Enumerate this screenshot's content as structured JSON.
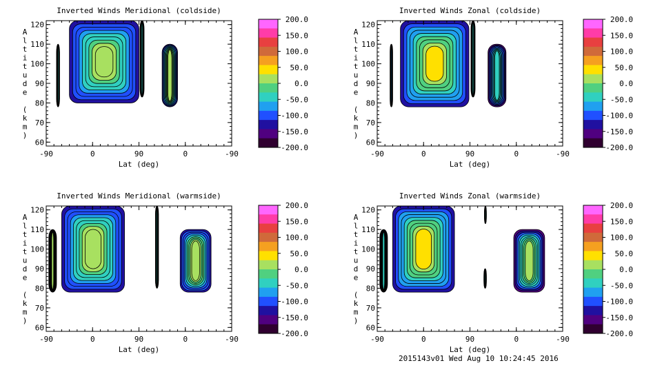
{
  "chart_data": [
    {
      "type": "heatmap",
      "title": "Inverted Winds Meridional (coldside)",
      "xlabel": "Lat (deg)",
      "ylabel": "Altitude (km)",
      "x_ticks": [
        "-90",
        "0",
        "90",
        "0",
        "-90"
      ],
      "y_ticks": [
        60,
        70,
        80,
        90,
        100,
        110,
        120
      ],
      "ylim": [
        58,
        122
      ],
      "colorbar": {
        "ticks": [
          "200.0",
          "150.0",
          "100.0",
          "50.0",
          "0.0",
          "-50.0",
          "-100.0",
          "-150.0",
          "-200.0"
        ],
        "range": [
          -200,
          200
        ]
      },
      "blobs": [
        {
          "x": [
            -70,
            -64
          ],
          "y": [
            78,
            110
          ],
          "v": -40
        },
        {
          "x": [
            -45,
            90
          ],
          "y": [
            80,
            122
          ],
          "v": 15
        },
        {
          "x": [
            92,
            100
          ],
          "y": [
            83,
            122
          ],
          "v": -30
        },
        {
          "x": [
            45,
            15
          ],
          "y": [
            78,
            110
          ],
          "v": 25
        }
      ]
    },
    {
      "type": "heatmap",
      "title": "Inverted Winds Zonal (coldside)",
      "xlabel": "Lat (deg)",
      "ylabel": "Altitude (km)",
      "x_ticks": [
        "-90",
        "0",
        "90",
        "0",
        "-90"
      ],
      "y_ticks": [
        60,
        70,
        80,
        90,
        100,
        110,
        120
      ],
      "ylim": [
        58,
        122
      ],
      "colorbar": {
        "ticks": [
          "200.0",
          "150.0",
          "100.0",
          "50.0",
          "0.0",
          "-50.0",
          "-100.0",
          "-150.0",
          "-200.0"
        ],
        "range": [
          -200,
          200
        ]
      },
      "blobs": [
        {
          "x": [
            -65,
            -60
          ],
          "y": [
            78,
            110
          ],
          "v": -60
        },
        {
          "x": [
            -45,
            88
          ],
          "y": [
            78,
            122
          ],
          "v": 30
        },
        {
          "x": [
            92,
            100
          ],
          "y": [
            83,
            122
          ],
          "v": -40
        },
        {
          "x": [
            55,
            20
          ],
          "y": [
            78,
            110
          ],
          "v": -30
        }
      ]
    },
    {
      "type": "heatmap",
      "title": "Inverted Winds Meridional (warmside)",
      "xlabel": "Lat (deg)",
      "ylabel": "Altitude (km)",
      "x_ticks": [
        "-90",
        "0",
        "90",
        "0",
        "-90"
      ],
      "y_ticks": [
        60,
        70,
        80,
        90,
        100,
        110,
        120
      ],
      "ylim": [
        58,
        122
      ],
      "colorbar": {
        "ticks": [
          "200.0",
          "150.0",
          "100.0",
          "50.0",
          "0.0",
          "-50.0",
          "-100.0",
          "-150.0",
          "-200.0"
        ],
        "range": [
          -200,
          200
        ]
      },
      "blobs": [
        {
          "x": [
            -85,
            -70
          ],
          "y": [
            78,
            110
          ],
          "v": 10
        },
        {
          "x": [
            -60,
            62
          ],
          "y": [
            78,
            122
          ],
          "v": 15
        },
        {
          "x": [
            122,
            128
          ],
          "y": [
            80,
            122
          ],
          "v": -50
        },
        {
          "x": [
            10,
            -50
          ],
          "y": [
            78,
            110
          ],
          "v": 20
        }
      ]
    },
    {
      "type": "heatmap",
      "title": "Inverted Winds Zonal (warmside)",
      "xlabel": "Lat (deg)",
      "ylabel": "Altitude (km)",
      "x_ticks": [
        "-90",
        "0",
        "90",
        "0",
        "-90"
      ],
      "y_ticks": [
        60,
        70,
        80,
        90,
        100,
        110,
        120
      ],
      "ylim": [
        58,
        122
      ],
      "colorbar": {
        "ticks": [
          "200.0",
          "150.0",
          "100.0",
          "50.0",
          "0.0",
          "-50.0",
          "-100.0",
          "-150.0",
          "-200.0"
        ],
        "range": [
          -200,
          200
        ]
      },
      "blobs": [
        {
          "x": [
            -85,
            -70
          ],
          "y": [
            78,
            110
          ],
          "v": -40
        },
        {
          "x": [
            -60,
            60
          ],
          "y": [
            78,
            122
          ],
          "v": 30
        },
        {
          "x": [
            117,
            122
          ],
          "y": [
            80,
            90
          ],
          "v": -40
        },
        {
          "x": [
            118,
            122
          ],
          "y": [
            113,
            122
          ],
          "v": -40
        },
        {
          "x": [
            5,
            -55
          ],
          "y": [
            78,
            110
          ],
          "v": 10
        }
      ]
    }
  ],
  "colorbar_palette": [
    "#ff66ff",
    "#ff3ca8",
    "#e84040",
    "#d06a3a",
    "#f5a020",
    "#ffe000",
    "#a8e060",
    "#50d080",
    "#30d0c0",
    "#20a0f0",
    "#2050ff",
    "#2010a0",
    "#500080",
    "#300030"
  ],
  "footer": "2015143v01 Wed Aug 10 10:24:45 2016"
}
